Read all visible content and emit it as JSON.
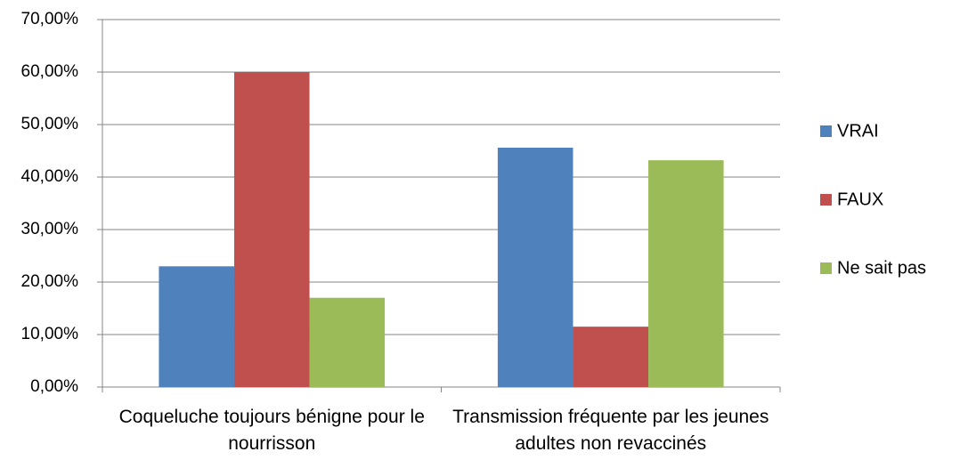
{
  "chart_data": {
    "type": "bar",
    "categories": [
      "Coqueluche toujours bénigne pour le nourrisson",
      "Transmission fréquente par les jeunes adultes non revaccinés"
    ],
    "series": [
      {
        "name": "VRAI",
        "color": "#4f81bd",
        "values": [
          23,
          45.6
        ]
      },
      {
        "name": "FAUX",
        "color": "#c0504d",
        "values": [
          60,
          11.5
        ]
      },
      {
        "name": "Ne sait pas",
        "color": "#9bbb59",
        "values": [
          17,
          43.2
        ]
      }
    ],
    "ylim": [
      0,
      70
    ],
    "yticks": [
      {
        "value": 0,
        "label": "0,00%"
      },
      {
        "value": 10,
        "label": "10,00%"
      },
      {
        "value": 20,
        "label": "20,00%"
      },
      {
        "value": 30,
        "label": "30,00%"
      },
      {
        "value": 40,
        "label": "40,00%"
      },
      {
        "value": 50,
        "label": "50,00%"
      },
      {
        "value": 60,
        "label": "60,00%"
      },
      {
        "value": 70,
        "label": "70,00%"
      }
    ],
    "grid": true,
    "legend": "right"
  }
}
